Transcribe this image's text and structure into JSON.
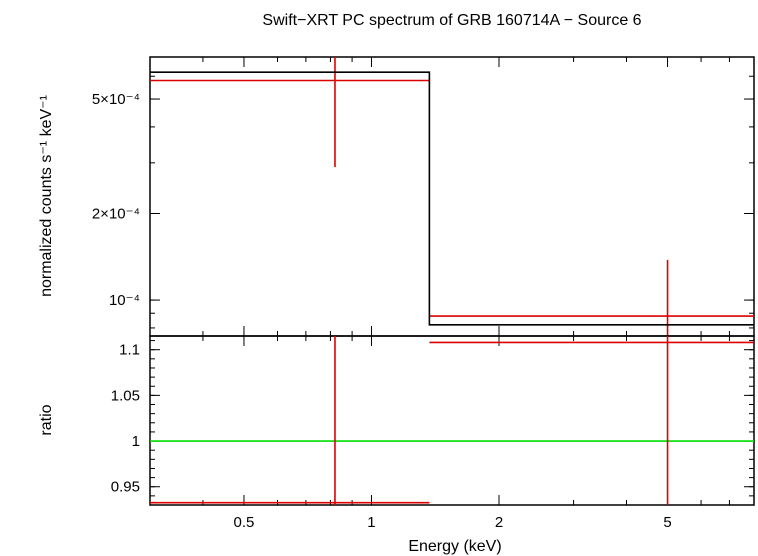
{
  "chart_data": {
    "title": "Swift−XRT PC spectrum of GRB 160714A − Source 6",
    "xlabel": "Energy (keV)",
    "xscale": "log",
    "xlim": [
      0.3,
      8.0
    ],
    "x_ticks": [
      {
        "value": 0.5,
        "label": "0.5"
      },
      {
        "value": 1,
        "label": "1"
      },
      {
        "value": 2,
        "label": "2"
      },
      {
        "value": 5,
        "label": "5"
      }
    ],
    "panels": [
      {
        "type": "step",
        "ylabel": "normalized counts s⁻¹ keV⁻¹",
        "yscale": "log",
        "ylim": [
          7.5e-05,
          0.0007
        ],
        "y_ticks": [
          {
            "value": 0.0001,
            "label": "10⁻⁴"
          },
          {
            "value": 0.0002,
            "label": "2×10⁻⁴"
          },
          {
            "value": 0.0005,
            "label": "5×10⁻⁴"
          }
        ],
        "series": [
          {
            "kind": "data",
            "color": "#dd0000",
            "points": [
              {
                "x": 0.82,
                "xlo": 0.3,
                "xhi": 1.37,
                "y": 0.00058,
                "ylo": 0.00029,
                "yhi": 0.0007
              },
              {
                "x": 5.0,
                "xlo": 1.37,
                "xhi": 8.0,
                "y": 8.8e-05,
                "ylo": 7.5e-05,
                "yhi": 0.000138
              }
            ]
          },
          {
            "kind": "model",
            "color": "#000000",
            "steps": [
              {
                "x0": 0.3,
                "x1": 1.37,
                "y": 0.00062
              },
              {
                "x0": 1.37,
                "x1": 8.0,
                "y": 8.2e-05
              }
            ]
          }
        ]
      },
      {
        "type": "ratio",
        "ylabel": "ratio",
        "yscale": "linear",
        "ylim": [
          0.93,
          1.115
        ],
        "y_ticks": [
          {
            "value": 0.95,
            "label": "0.95"
          },
          {
            "value": 1.0,
            "label": "1"
          },
          {
            "value": 1.05,
            "label": "1.05"
          },
          {
            "value": 1.1,
            "label": "1.1"
          }
        ],
        "reference_line": {
          "y": 1.0,
          "color": "#00dd00"
        },
        "series": [
          {
            "kind": "data",
            "color": "#dd0000",
            "points": [
              {
                "x": 0.82,
                "xlo": 0.3,
                "xhi": 1.37,
                "y": 0.9325,
                "ylo": 0.93,
                "yhi": 1.115
              },
              {
                "x": 5.0,
                "xlo": 1.37,
                "xhi": 8.0,
                "y": 1.108,
                "ylo": 0.93,
                "yhi": 1.115
              }
            ]
          }
        ]
      }
    ]
  }
}
